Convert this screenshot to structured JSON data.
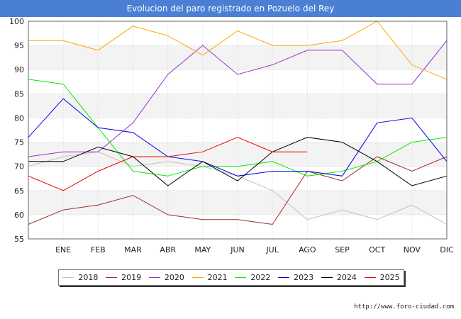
{
  "chart_data": {
    "type": "line",
    "title": "Evolucion del paro registrado en Pozuelo del Rey",
    "xlabel": "",
    "ylabel": "",
    "categories": [
      "",
      "ENE",
      "FEB",
      "MAR",
      "ABR",
      "MAY",
      "JUN",
      "JUL",
      "AGO",
      "SEP",
      "OCT",
      "NOV",
      "DIC"
    ],
    "ylim": [
      55,
      100
    ],
    "yticks": [
      55,
      60,
      65,
      70,
      75,
      80,
      85,
      90,
      95,
      100
    ],
    "grid": true,
    "legend_position": "bottom",
    "series": [
      {
        "name": "2018",
        "color": "#c0c0c0",
        "values": [
          70,
          72,
          73,
          70,
          71,
          70,
          68,
          65,
          59,
          61,
          59,
          62,
          58
        ]
      },
      {
        "name": "2019",
        "color": "#a52a2a",
        "values": [
          58,
          61,
          62,
          64,
          60,
          59,
          59,
          58,
          69,
          67,
          72,
          69,
          72
        ]
      },
      {
        "name": "2020",
        "color": "#9932cc",
        "values": [
          72,
          73,
          73,
          79,
          89,
          95,
          89,
          91,
          94,
          94,
          87,
          87,
          96
        ]
      },
      {
        "name": "2021",
        "color": "#ffa500",
        "values": [
          96,
          96,
          94,
          99,
          97,
          93,
          98,
          95,
          95,
          96,
          100,
          91,
          88
        ]
      },
      {
        "name": "2022",
        "color": "#00ee00",
        "values": [
          88,
          87,
          78,
          69,
          68,
          70,
          70,
          71,
          68,
          69,
          71,
          75,
          76
        ]
      },
      {
        "name": "2023",
        "color": "#0000ee",
        "values": [
          76,
          84,
          78,
          77,
          72,
          71,
          68,
          69,
          69,
          68,
          79,
          80,
          71
        ]
      },
      {
        "name": "2024",
        "color": "#000000",
        "values": [
          71,
          71,
          74,
          72,
          66,
          71,
          67,
          73,
          76,
          75,
          71,
          66,
          68
        ]
      },
      {
        "name": "2025",
        "color": "#ee0000",
        "values": [
          68,
          65,
          69,
          72,
          72,
          73,
          76,
          73,
          73,
          null,
          null,
          null,
          null
        ]
      }
    ]
  },
  "footer": {
    "source": "http://www.foro-ciudad.com"
  }
}
